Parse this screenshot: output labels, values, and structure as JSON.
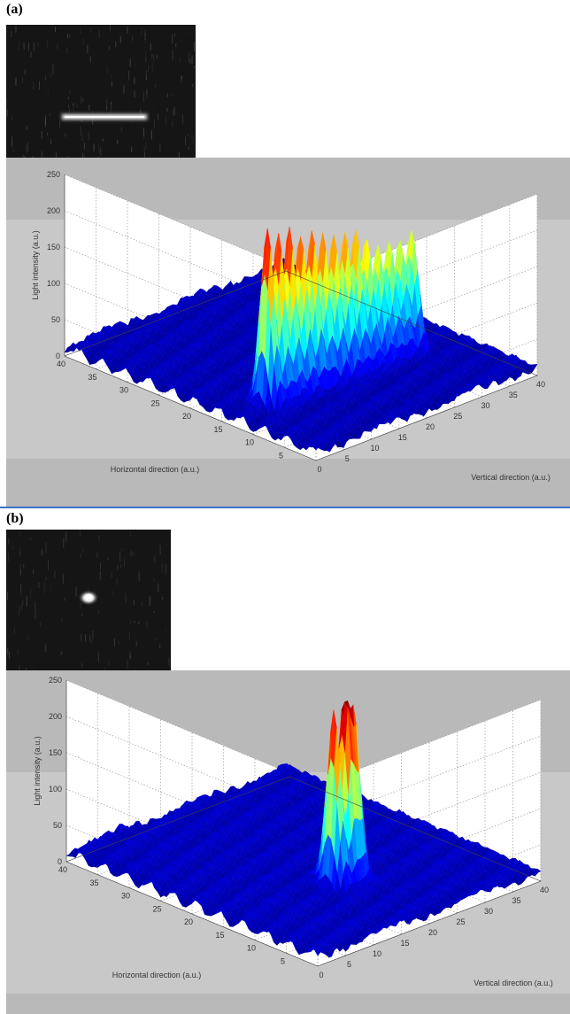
{
  "figure": {
    "panels": [
      {
        "label": "(a)",
        "inset": "horizontal line"
      },
      {
        "label": "(b)",
        "inset": "single spot"
      }
    ],
    "colors": {
      "panel_background": "#c8c8c8",
      "band_background": "#b9b9b9",
      "surface_low": "#00008f",
      "surface_high": "#b40000",
      "divider": "#3f74c6",
      "thumbnail_background": "#151515"
    }
  },
  "chart_data": [
    {
      "type": "surface",
      "panel": "(a)",
      "title": "",
      "xlabel": "Horizontal direction (a.u.)",
      "ylabel": "Vertical direction (a.u.)",
      "zlabel": "Light intensity (a.u.)",
      "xlim": [
        0,
        40
      ],
      "ylim": [
        0,
        40
      ],
      "zlim": [
        0,
        250
      ],
      "x_ticks": [
        "5",
        "10",
        "15",
        "20",
        "25",
        "30",
        "35",
        "40"
      ],
      "y_ticks": [
        "0",
        "5",
        "10",
        "15",
        "20",
        "25",
        "30",
        "35",
        "40"
      ],
      "z_ticks": [
        "0",
        "50",
        "100",
        "150",
        "200",
        "250"
      ],
      "grid": true,
      "colormap": "jet",
      "background_level": 10,
      "peaks": [
        {
          "x": 13,
          "y": 6.0,
          "z": 250
        },
        {
          "x": 13,
          "y": 8.0,
          "z": 235
        },
        {
          "x": 13,
          "y": 10.0,
          "z": 240
        },
        {
          "x": 13,
          "y": 12.0,
          "z": 230
        },
        {
          "x": 13,
          "y": 14.0,
          "z": 225
        },
        {
          "x": 13,
          "y": 16.0,
          "z": 210
        },
        {
          "x": 13,
          "y": 18.0,
          "z": 205
        },
        {
          "x": 13,
          "y": 20.0,
          "z": 200
        },
        {
          "x": 13,
          "y": 22.0,
          "z": 195
        },
        {
          "x": 13,
          "y": 24.0,
          "z": 185
        },
        {
          "x": 13,
          "y": 26.0,
          "z": 175
        },
        {
          "x": 13,
          "y": 28.0,
          "z": 170
        },
        {
          "x": 13,
          "y": 30.0,
          "z": 165
        },
        {
          "x": 13,
          "y": 32.0,
          "z": 175
        }
      ]
    },
    {
      "type": "surface",
      "panel": "(b)",
      "title": "",
      "xlabel": "Horizontal direction (a.u.)",
      "ylabel": "Vertical direction (a.u.)",
      "zlabel": "Light intensity (a.u.)",
      "xlim": [
        0,
        40
      ],
      "ylim": [
        0,
        40
      ],
      "zlim": [
        0,
        250
      ],
      "x_ticks": [
        "5",
        "10",
        "15",
        "20",
        "25",
        "30",
        "35",
        "40"
      ],
      "y_ticks": [
        "0",
        "5",
        "10",
        "15",
        "20",
        "25",
        "30",
        "35",
        "40"
      ],
      "z_ticks": [
        "0",
        "50",
        "100",
        "150",
        "200",
        "250"
      ],
      "grid": true,
      "colormap": "jet",
      "background_level": 12,
      "peaks": [
        {
          "x": 13,
          "y": 17.5,
          "z": 250
        },
        {
          "x": 13,
          "y": 19.5,
          "z": 255
        },
        {
          "x": 13,
          "y": 21.0,
          "z": 235
        }
      ]
    }
  ]
}
